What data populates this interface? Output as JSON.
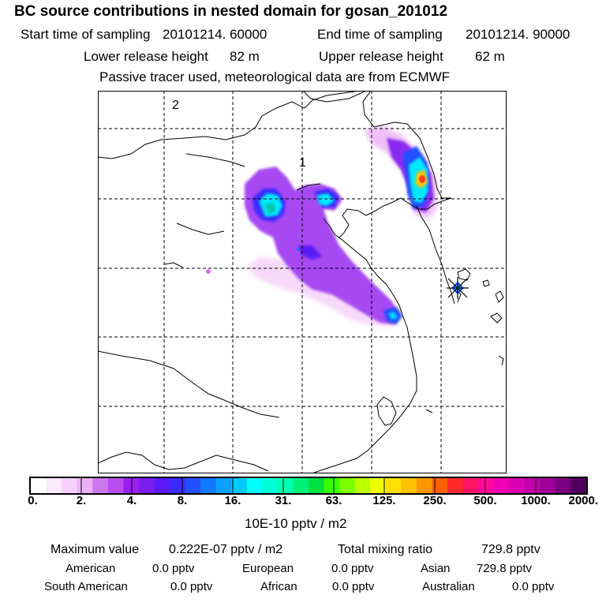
{
  "header": {
    "title": "BC  source contributions in nested domain for gosan_201012",
    "start_label": "Start time of sampling",
    "start_value": "20101214. 60000",
    "end_label": "End time of sampling",
    "end_value": "20101214. 90000",
    "lower_label": "Lower release height",
    "lower_value": "82 m",
    "upper_label": "Upper release height",
    "upper_value": "62 m",
    "note": "Passive tracer used, meteorological data are from ECMWF"
  },
  "map": {
    "labels": {
      "label_1": "1",
      "label_2": "2"
    },
    "receptor_marker": "star-icon"
  },
  "colorbar": {
    "unit": "10E-10 pptv / m2",
    "tick_labels": [
      "0.",
      "2.",
      "4.",
      "8.",
      "16.",
      "31.",
      "63.",
      "125.",
      "250.",
      "500.",
      "1000.",
      "2000."
    ],
    "colors": [
      "#ffffff",
      "#fbeafd",
      "#f4d0fa",
      "#eab1f6",
      "#cc77f2",
      "#b94cf2",
      "#9b1ff0",
      "#7c1cf0",
      "#5a1af5",
      "#3b2bff",
      "#2250ff",
      "#0e78ff",
      "#0aa0ff",
      "#05c8ff",
      "#00ffff",
      "#00ffd8",
      "#00ffb0",
      "#00f07a",
      "#00e040",
      "#38ff00",
      "#7cff00",
      "#bcff00",
      "#eeff00",
      "#ffe100",
      "#ffc000",
      "#ff9800",
      "#ff6000",
      "#ff2a2a",
      "#ff1466",
      "#ff0a9a",
      "#f000b4",
      "#d800b0",
      "#c000a8",
      "#a0009a",
      "#7a0080",
      "#520060"
    ]
  },
  "stats": {
    "max_label": "Maximum value",
    "max_value": "0.222E-07 pptv / m2",
    "total_label": "Total mixing ratio",
    "total_value": "729.8 pptv",
    "regions": [
      {
        "name": "American",
        "value": "0.0 pptv"
      },
      {
        "name": "European",
        "value": "0.0 pptv"
      },
      {
        "name": "Asian",
        "value": "729.8 pptv"
      },
      {
        "name": "South American",
        "value": "0.0 pptv"
      },
      {
        "name": "African",
        "value": "0.0 pptv"
      },
      {
        "name": "Australian",
        "value": "0.0 pptv"
      }
    ]
  }
}
